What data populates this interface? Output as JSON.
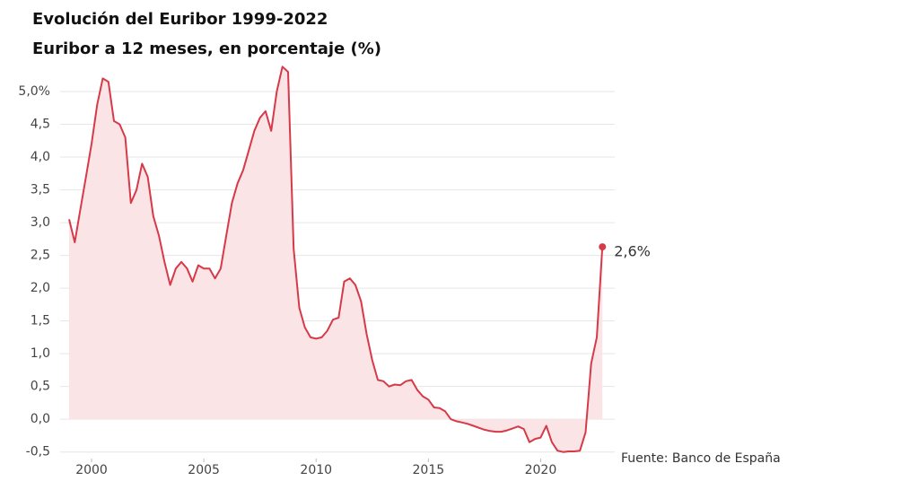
{
  "chart_data": {
    "type": "line",
    "title": "Evolución del Euribor 1999-2022",
    "subtitle": "Euribor a 12 meses, en porcentaje (%)",
    "source": "Fuente: Banco de España",
    "last_label": "2,6%",
    "color": "#d63a48",
    "fill_color": "#fbe4e6",
    "grid": true,
    "xlim": [
      1998.6,
      2023.3
    ],
    "ylim": [
      -0.6,
      5.5
    ],
    "xticks": [
      2000,
      2005,
      2010,
      2015,
      2020
    ],
    "yticks": [
      {
        "value": -0.5,
        "label": "-0,5"
      },
      {
        "value": 0,
        "label": "0,0"
      },
      {
        "value": 0.5,
        "label": "0,5"
      },
      {
        "value": 1,
        "label": "1,0"
      },
      {
        "value": 1.5,
        "label": "1,5"
      },
      {
        "value": 2,
        "label": "2,0"
      },
      {
        "value": 2.5,
        "label": "2,5"
      },
      {
        "value": 3,
        "label": "3,0"
      },
      {
        "value": 3.5,
        "label": "3,5"
      },
      {
        "value": 4,
        "label": "4,0"
      },
      {
        "value": 4.5,
        "label": "4,5"
      },
      {
        "value": 5,
        "label": "5,0%"
      }
    ],
    "x": [
      1999,
      1999.25,
      1999.5,
      1999.75,
      2000,
      2000.25,
      2000.5,
      2000.75,
      2001,
      2001.25,
      2001.5,
      2001.75,
      2002,
      2002.25,
      2002.5,
      2002.75,
      2003,
      2003.25,
      2003.5,
      2003.75,
      2004,
      2004.25,
      2004.5,
      2004.75,
      2005,
      2005.25,
      2005.5,
      2005.75,
      2006,
      2006.25,
      2006.5,
      2006.75,
      2007,
      2007.25,
      2007.5,
      2007.75,
      2008,
      2008.25,
      2008.5,
      2008.75,
      2009,
      2009.25,
      2009.5,
      2009.75,
      2010,
      2010.25,
      2010.5,
      2010.75,
      2011,
      2011.25,
      2011.5,
      2011.75,
      2012,
      2012.25,
      2012.5,
      2012.75,
      2013,
      2013.25,
      2013.5,
      2013.75,
      2014,
      2014.25,
      2014.5,
      2014.75,
      2015,
      2015.25,
      2015.5,
      2015.75,
      2016,
      2016.25,
      2016.5,
      2016.75,
      2017,
      2017.25,
      2017.5,
      2017.75,
      2018,
      2018.25,
      2018.5,
      2018.75,
      2019,
      2019.25,
      2019.5,
      2019.75,
      2020,
      2020.25,
      2020.5,
      2020.75,
      2021,
      2021.25,
      2021.5,
      2021.75,
      2022,
      2022.25,
      2022.5,
      2022.75
    ],
    "values": [
      3.05,
      2.7,
      3.2,
      3.7,
      4.2,
      4.8,
      5.2,
      5.15,
      4.55,
      4.5,
      4.3,
      3.3,
      3.5,
      3.9,
      3.7,
      3.1,
      2.8,
      2.4,
      2.05,
      2.3,
      2.4,
      2.3,
      2.1,
      2.35,
      2.3,
      2.3,
      2.15,
      2.3,
      2.8,
      3.3,
      3.6,
      3.8,
      4.1,
      4.4,
      4.6,
      4.7,
      4.4,
      5.0,
      5.38,
      5.3,
      2.6,
      1.7,
      1.4,
      1.25,
      1.23,
      1.25,
      1.35,
      1.52,
      1.55,
      2.1,
      2.15,
      2.05,
      1.8,
      1.3,
      0.9,
      0.6,
      0.58,
      0.5,
      0.53,
      0.52,
      0.58,
      0.6,
      0.45,
      0.35,
      0.3,
      0.18,
      0.17,
      0.12,
      0.0,
      -0.03,
      -0.05,
      -0.07,
      -0.1,
      -0.13,
      -0.16,
      -0.18,
      -0.19,
      -0.19,
      -0.17,
      -0.14,
      -0.11,
      -0.15,
      -0.35,
      -0.3,
      -0.28,
      -0.1,
      -0.35,
      -0.48,
      -0.5,
      -0.49,
      -0.49,
      -0.48,
      -0.2,
      0.85,
      1.25,
      2.63
    ]
  }
}
